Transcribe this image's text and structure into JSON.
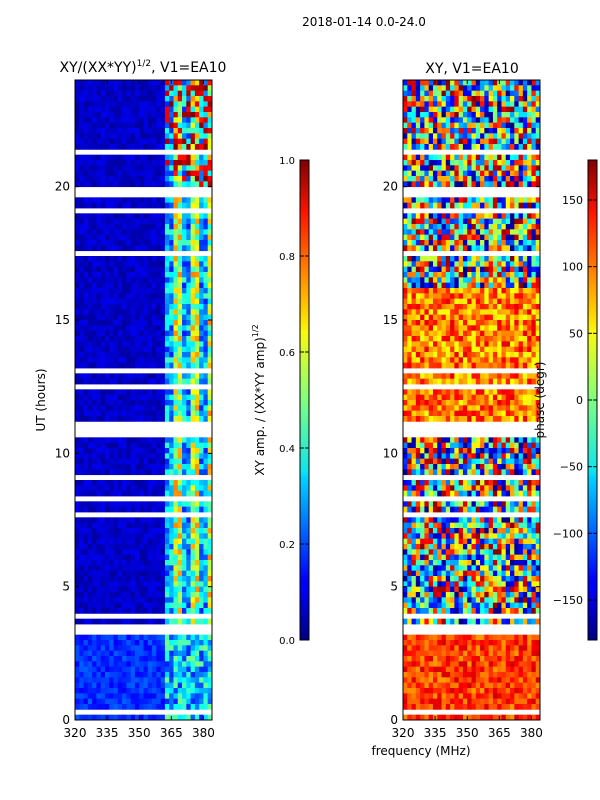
{
  "suptitle": "2018-01-14 0.0-24.0",
  "chart_data": [
    {
      "type": "heatmap",
      "title_main": "XY/(XX*YY)",
      "title_sup": "1/2",
      "title_rest": ", V1=EA10",
      "xlabel": "",
      "ylabel": "UT (hours)",
      "xlim": [
        320,
        384
      ],
      "ylim": [
        0,
        24
      ],
      "xticks": [
        320,
        335,
        350,
        365,
        380
      ],
      "yticks": [
        0,
        5,
        10,
        15,
        20
      ],
      "colorbar": {
        "label_main": "XY amp. / (XX*YY amp)",
        "label_sup": "1/2",
        "range": [
          0.0,
          1.0
        ],
        "ticks": [
          "0.0",
          "0.2",
          "0.4",
          "0.6",
          "0.8",
          "1.0"
        ]
      }
    },
    {
      "type": "heatmap",
      "title": "XY, V1=EA10",
      "xlabel": "frequency (MHz)",
      "ylabel": "",
      "xlim": [
        320,
        384
      ],
      "ylim": [
        0,
        24
      ],
      "xticks": [
        320,
        335,
        350,
        365,
        380
      ],
      "yticks": [
        0,
        5,
        10,
        15,
        20
      ],
      "colorbar": {
        "label": "phase (degr)",
        "range": [
          -180,
          180
        ],
        "ticks": [
          "−150",
          "−100",
          "−50",
          "0",
          "50",
          "100",
          "150"
        ]
      }
    }
  ]
}
